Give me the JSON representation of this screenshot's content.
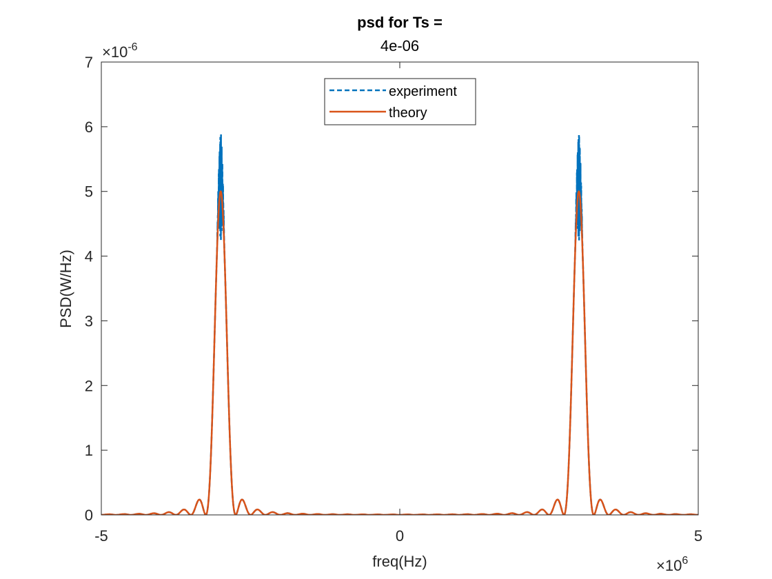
{
  "chart_data": {
    "type": "line",
    "title": "psd for Ts =",
    "subtitle": "4e-06",
    "xlabel": "freq(Hz)",
    "ylabel": "PSD(W/Hz)",
    "xlim": [
      -5000000,
      5000000
    ],
    "ylim": [
      0,
      7e-06
    ],
    "x_ticks": [
      -5000000,
      0,
      5000000
    ],
    "x_tick_labels": [
      "-5",
      "0",
      "5"
    ],
    "x_exponent_label": "×10",
    "x_exponent": "6",
    "y_ticks": [
      0,
      1e-06,
      2e-06,
      3e-06,
      4e-06,
      5e-06,
      6e-06,
      7e-06
    ],
    "y_tick_labels": [
      "0",
      "1",
      "2",
      "3",
      "4",
      "5",
      "6",
      "7"
    ],
    "y_exponent_label": "×10",
    "y_exponent": "-6",
    "grid": false,
    "legend_position": "top-center",
    "series": [
      {
        "name": "experiment",
        "color": "#0072BD",
        "style": "dashed",
        "peaks": [
          {
            "center": -3000000,
            "peak_max": 6e-06,
            "peak_min": 4.2e-06,
            "main_lobe_halfwidth": 250000
          }
        ],
        "mirror": true
      },
      {
        "name": "theory",
        "color": "#D95319",
        "style": "solid",
        "peaks": [
          {
            "center": -3000000,
            "peak": 5e-06,
            "main_lobe_halfwidth": 250000
          }
        ],
        "mirror": true
      }
    ]
  }
}
